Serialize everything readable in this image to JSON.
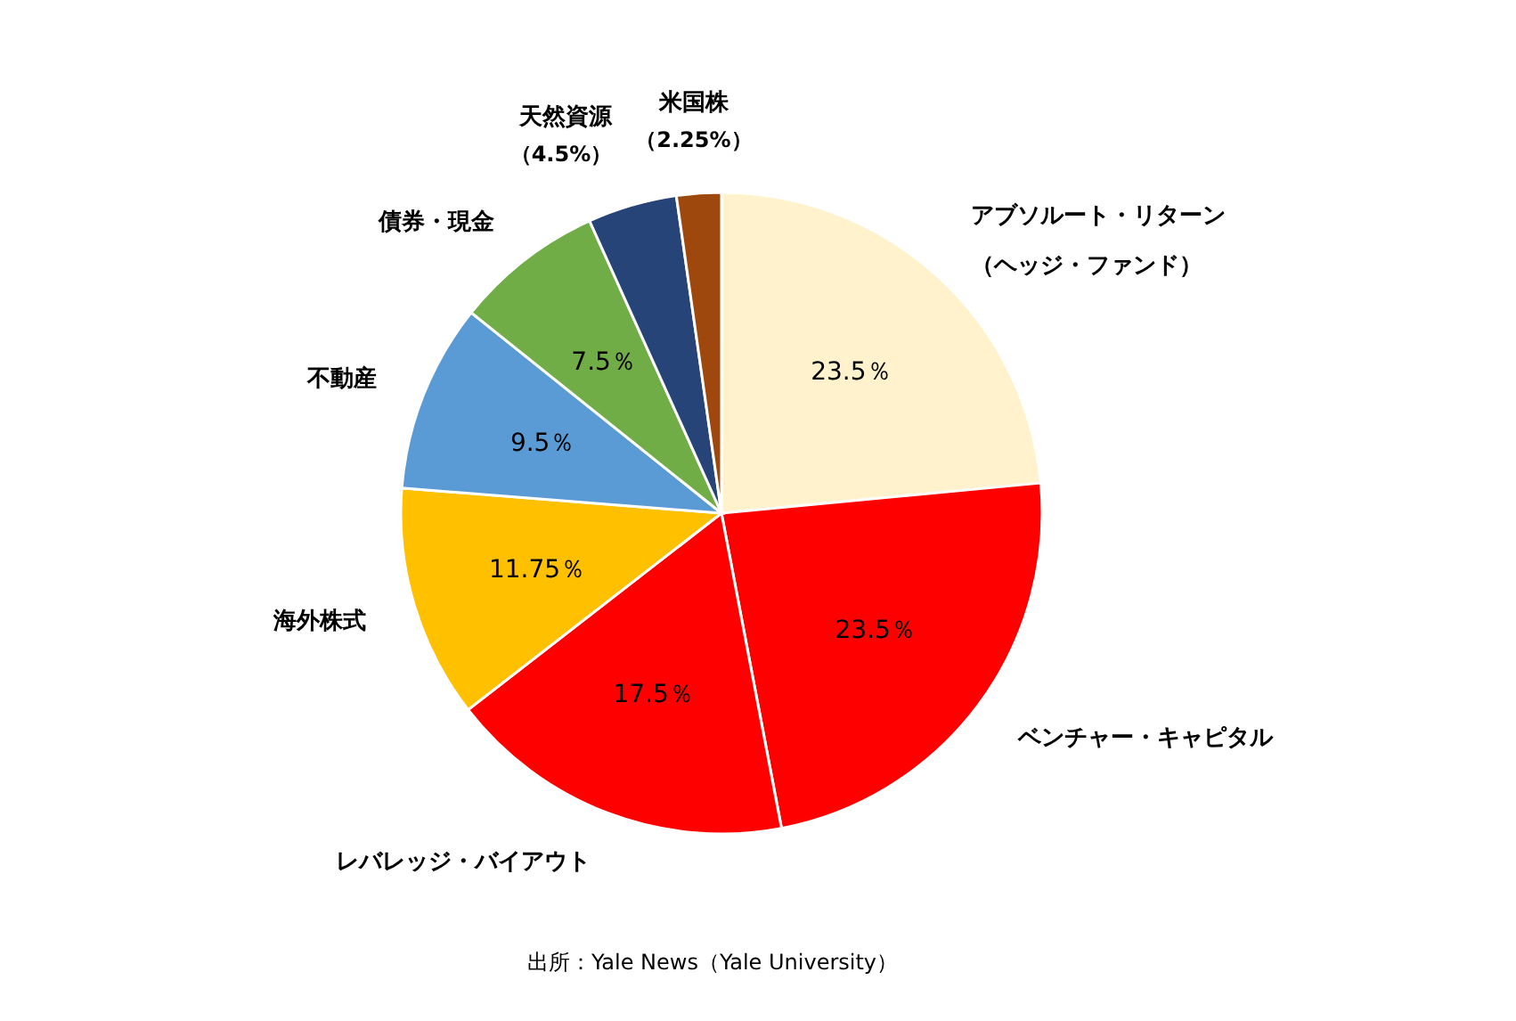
{
  "chart_data": {
    "type": "pie",
    "categories": [
      "アブソルート・リターン（ヘッジ・ファンド）",
      "ベンチャー・キャピタル",
      "レバレッジ・バイアウト",
      "海外株式",
      "不動産",
      "債券・現金",
      "天然資源",
      "米国株"
    ],
    "values": [
      23.5,
      23.5,
      17.5,
      11.75,
      9.5,
      7.5,
      4.5,
      2.25
    ],
    "value_labels": [
      "23.5％",
      "23.5％",
      "17.5％",
      "11.75％",
      "9.5％",
      "7.5％",
      "（4.5%）",
      "（2.25%）"
    ],
    "colors": [
      "#fff2cc",
      "#ff0000",
      "#ff0000",
      "#ffc000",
      "#5b9bd5",
      "#70ad47",
      "#264478",
      "#9e480e"
    ],
    "annotations": [
      "出所：Yale  News（Yale  University）"
    ]
  }
}
